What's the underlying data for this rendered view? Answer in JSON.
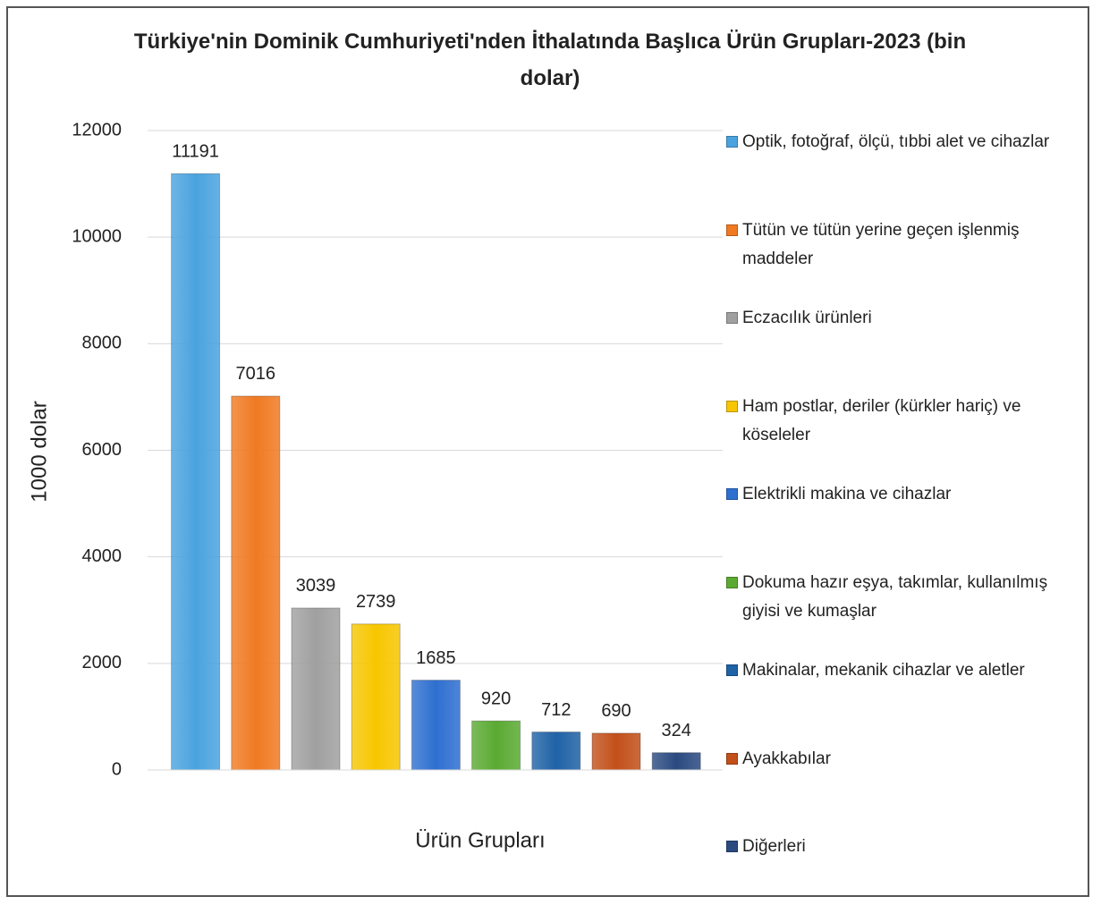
{
  "chart_data": {
    "type": "bar",
    "title": "Türkiye'nin Dominik Cumhuriyeti'nden İthalatında Başlıca Ürün Grupları-2023 (bin dolar)",
    "ylabel": "1000 dolar",
    "xlabel": "Ürün Grupları",
    "series": [
      {
        "name": "Optik, fotoğraf, ölçü, tıbbi alet ve cihazlar",
        "color": "#4aa3df",
        "values": [
          11191
        ]
      },
      {
        "name": "Tütün ve tütün yerine geçen işlenmiş maddeler",
        "color": "#f07a22",
        "values": [
          7016
        ]
      },
      {
        "name": "Eczacılık ürünleri",
        "color": "#a0a0a0",
        "values": [
          3039
        ]
      },
      {
        "name": "Ham postlar, deriler (kürkler hariç) ve köseleler",
        "color": "#f7c600",
        "values": [
          2739
        ]
      },
      {
        "name": "Elektrikli makina ve cihazlar",
        "color": "#2e6fd0",
        "values": [
          1685
        ]
      },
      {
        "name": "Dokuma hazır eşya, takımlar, kullanılmış giyisi ve kumaşlar",
        "color": "#5aaa32",
        "values": [
          920
        ]
      },
      {
        "name": "Makinalar, mekanik cihazlar ve aletler",
        "color": "#1f62a6",
        "values": [
          712
        ]
      },
      {
        "name": "Ayakkabılar",
        "color": "#c2501a",
        "values": [
          690
        ]
      },
      {
        "name": "Diğerleri",
        "color": "#2a4a80",
        "values": [
          324
        ]
      }
    ],
    "ylim": [
      0,
      12000
    ],
    "yticks": [
      0,
      2000,
      4000,
      6000,
      8000,
      10000,
      12000
    ],
    "grid": true,
    "legend": "right"
  }
}
